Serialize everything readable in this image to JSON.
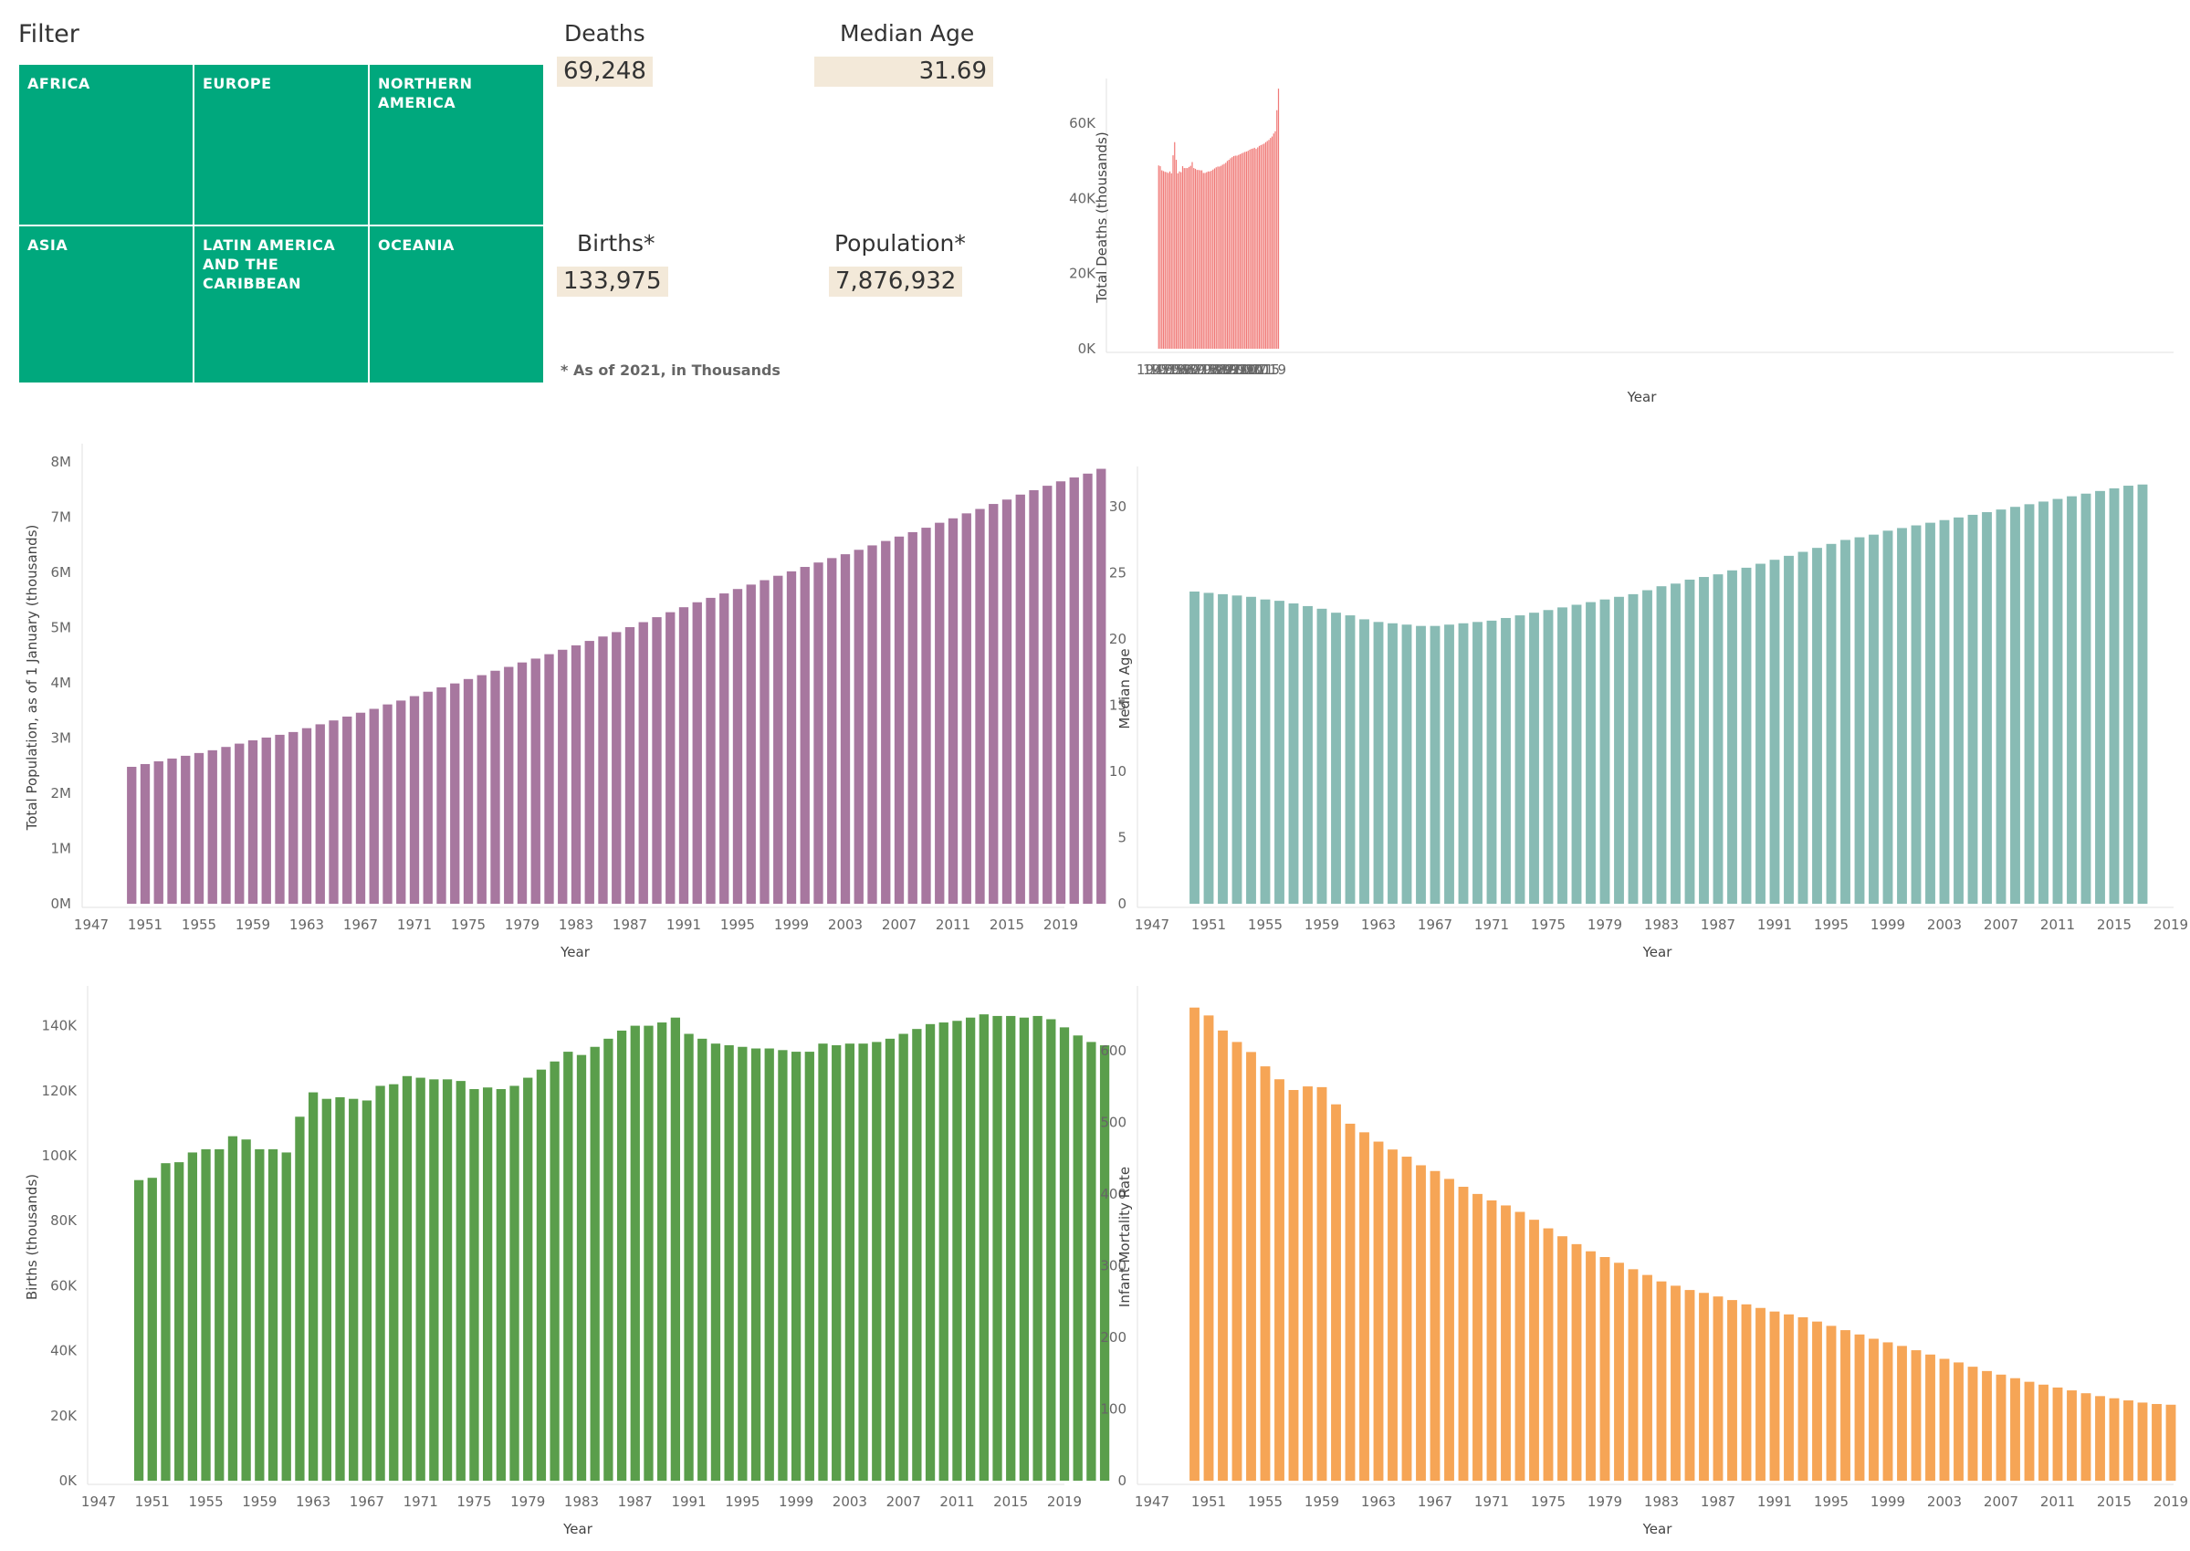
{
  "filter": {
    "title": "Filter",
    "regions": [
      "AFRICA",
      "EUROPE",
      "NORTHERN AMERICA",
      "ASIA",
      "LATIN AMERICA AND THE CARIBBEAN",
      "OCEANIA"
    ],
    "tile_color": "#00a87d"
  },
  "kpis": {
    "deaths": {
      "label": "Deaths",
      "value": "69,248"
    },
    "median_age": {
      "label": "Median Age",
      "value": "31.69"
    },
    "births": {
      "label": "Births*",
      "value": "133,975"
    },
    "population": {
      "label": "Population*",
      "value": "7,876,932"
    },
    "note": "* As of 2021, in Thousands",
    "value_background": "#f3e9d9"
  },
  "chart_data": [
    {
      "id": "deaths",
      "type": "bar",
      "color": "#f07a78",
      "xlabel": "Year",
      "ylabel": "Total Deaths (thousands)",
      "ylim": [
        0,
        70000
      ],
      "yticks": [
        0,
        20000,
        40000,
        60000
      ],
      "ytick_labels": [
        "0K",
        "20K",
        "40K",
        "60K"
      ],
      "xticks": [
        1947,
        1951,
        1955,
        1959,
        1963,
        1967,
        1971,
        1975,
        1979,
        1983,
        1987,
        1991,
        1995,
        1999,
        2003,
        2007,
        2011,
        2015,
        2019
      ],
      "start_year": 1950,
      "values": [
        48800,
        48600,
        47500,
        47300,
        47100,
        47000,
        46800,
        47200,
        46700,
        51500,
        55000,
        50300,
        46700,
        47200,
        47000,
        48600,
        48100,
        48100,
        48100,
        48400,
        48700,
        49700,
        48100,
        47900,
        47600,
        47600,
        47500,
        47500,
        46800,
        46800,
        47000,
        47200,
        47200,
        47400,
        47700,
        48000,
        48300,
        48500,
        48500,
        48700,
        49000,
        49200,
        49500,
        50000,
        50300,
        50700,
        51000,
        51300,
        51400,
        51400,
        51600,
        51800,
        52000,
        52200,
        52400,
        52500,
        52700,
        53000,
        53200,
        53300,
        53500,
        53200,
        53600,
        54000,
        54200,
        54400,
        54600,
        55000,
        55300,
        55600,
        56100,
        56500,
        57300,
        57900,
        63500,
        69248
      ]
    },
    {
      "id": "population",
      "type": "bar",
      "color": "#a7779f",
      "xlabel": "Year",
      "ylabel": "Total Population, as of 1 January (thousands)",
      "ylim": [
        0,
        8200000
      ],
      "yticks": [
        0,
        1000000,
        2000000,
        3000000,
        4000000,
        5000000,
        6000000,
        7000000,
        8000000
      ],
      "ytick_labels": [
        "0M",
        "1M",
        "2M",
        "3M",
        "4M",
        "5M",
        "6M",
        "7M",
        "8M"
      ],
      "xticks": [
        1947,
        1951,
        1955,
        1959,
        1963,
        1967,
        1971,
        1975,
        1979,
        1983,
        1987,
        1991,
        1995,
        1999,
        2003,
        2007,
        2011,
        2015,
        2019
      ],
      "start_year": 1950,
      "values": [
        2480000,
        2530000,
        2580000,
        2630000,
        2680000,
        2730000,
        2780000,
        2840000,
        2900000,
        2960000,
        3010000,
        3060000,
        3110000,
        3180000,
        3250000,
        3320000,
        3390000,
        3460000,
        3530000,
        3610000,
        3680000,
        3760000,
        3840000,
        3920000,
        3990000,
        4070000,
        4140000,
        4220000,
        4290000,
        4370000,
        4440000,
        4520000,
        4600000,
        4680000,
        4760000,
        4840000,
        4920000,
        5010000,
        5100000,
        5190000,
        5280000,
        5370000,
        5460000,
        5540000,
        5620000,
        5700000,
        5780000,
        5860000,
        5940000,
        6020000,
        6100000,
        6180000,
        6260000,
        6330000,
        6410000,
        6490000,
        6570000,
        6650000,
        6730000,
        6810000,
        6900000,
        6980000,
        7070000,
        7150000,
        7240000,
        7320000,
        7410000,
        7490000,
        7570000,
        7650000,
        7720000,
        7790000,
        7876932
      ]
    },
    {
      "id": "median_age",
      "type": "bar",
      "color": "#88bbb4",
      "xlabel": "Year",
      "ylabel": "Median Age",
      "ylim": [
        0,
        32.5
      ],
      "yticks": [
        0,
        5,
        10,
        15,
        20,
        25,
        30
      ],
      "ytick_labels": [
        "0",
        "5",
        "10",
        "15",
        "20",
        "25",
        "30"
      ],
      "xticks": [
        1947,
        1951,
        1955,
        1959,
        1963,
        1967,
        1971,
        1975,
        1979,
        1983,
        1987,
        1991,
        1995,
        1999,
        2003,
        2007,
        2011,
        2015,
        2019
      ],
      "start_year": 1950,
      "values": [
        23.6,
        23.5,
        23.4,
        23.3,
        23.2,
        23.0,
        22.9,
        22.7,
        22.5,
        22.3,
        22.0,
        21.8,
        21.5,
        21.3,
        21.2,
        21.1,
        21.0,
        21.0,
        21.1,
        21.2,
        21.3,
        21.4,
        21.6,
        21.8,
        22.0,
        22.2,
        22.4,
        22.6,
        22.8,
        23.0,
        23.2,
        23.4,
        23.7,
        24.0,
        24.2,
        24.5,
        24.7,
        24.9,
        25.2,
        25.4,
        25.7,
        26.0,
        26.3,
        26.6,
        26.9,
        27.2,
        27.5,
        27.7,
        27.9,
        28.2,
        28.4,
        28.6,
        28.8,
        29.0,
        29.2,
        29.4,
        29.6,
        29.8,
        30.0,
        30.2,
        30.4,
        30.6,
        30.8,
        31.0,
        31.2,
        31.4,
        31.6,
        31.69
      ]
    },
    {
      "id": "births",
      "type": "bar",
      "color": "#5a9e4b",
      "xlabel": "Year",
      "ylabel": "Births (thousands)",
      "ylim": [
        0,
        150000
      ],
      "yticks": [
        0,
        20000,
        40000,
        60000,
        80000,
        100000,
        120000,
        140000
      ],
      "ytick_labels": [
        "0K",
        "20K",
        "40K",
        "60K",
        "80K",
        "100K",
        "120K",
        "140K"
      ],
      "xticks": [
        1947,
        1951,
        1955,
        1959,
        1963,
        1967,
        1971,
        1975,
        1979,
        1983,
        1987,
        1991,
        1995,
        1999,
        2003,
        2007,
        2011,
        2015,
        2019
      ],
      "start_year": 1950,
      "values": [
        92500,
        93200,
        97700,
        98000,
        101000,
        102000,
        102000,
        106000,
        105000,
        102000,
        102000,
        101000,
        112000,
        119500,
        117500,
        118000,
        117500,
        117000,
        121500,
        122000,
        124500,
        124000,
        123500,
        123500,
        123000,
        120500,
        121000,
        120500,
        121500,
        124000,
        126500,
        129000,
        132000,
        131000,
        133500,
        136000,
        138500,
        140000,
        140000,
        141000,
        142500,
        137500,
        136000,
        134500,
        134000,
        133500,
        133000,
        133000,
        132500,
        132000,
        132000,
        134500,
        134000,
        134500,
        134500,
        135000,
        136000,
        137500,
        139000,
        140500,
        141000,
        141500,
        142500,
        143500,
        143000,
        143000,
        142500,
        143000,
        142000,
        139500,
        137000,
        135000,
        133975
      ]
    },
    {
      "id": "infant_mortality",
      "type": "bar",
      "color": "#f6a556",
      "xlabel": "Year",
      "ylabel": "Infant Mortality Rate",
      "ylim": [
        0,
        680
      ],
      "yticks": [
        0,
        100,
        200,
        300,
        400,
        500,
        600
      ],
      "ytick_labels": [
        "0",
        "100",
        "200",
        "300",
        "400",
        "500",
        "600"
      ],
      "xticks": [
        1947,
        1951,
        1955,
        1959,
        1963,
        1967,
        1971,
        1975,
        1979,
        1983,
        1987,
        1991,
        1995,
        1999,
        2003,
        2007,
        2011,
        2015,
        2019
      ],
      "start_year": 1950,
      "values": [
        660,
        649,
        628,
        612,
        598,
        578,
        560,
        545,
        550,
        549,
        525,
        498,
        486,
        473,
        462,
        452,
        440,
        432,
        421,
        410,
        400,
        391,
        384,
        375,
        364,
        352,
        341,
        330,
        320,
        312,
        304,
        295,
        287,
        278,
        272,
        266,
        262,
        257,
        252,
        246,
        241,
        236,
        232,
        228,
        222,
        216,
        210,
        204,
        198,
        193,
        188,
        182,
        176,
        170,
        165,
        159,
        153,
        148,
        143,
        138,
        134,
        130,
        126,
        122,
        118,
        115,
        112,
        109,
        107,
        106
      ]
    }
  ]
}
